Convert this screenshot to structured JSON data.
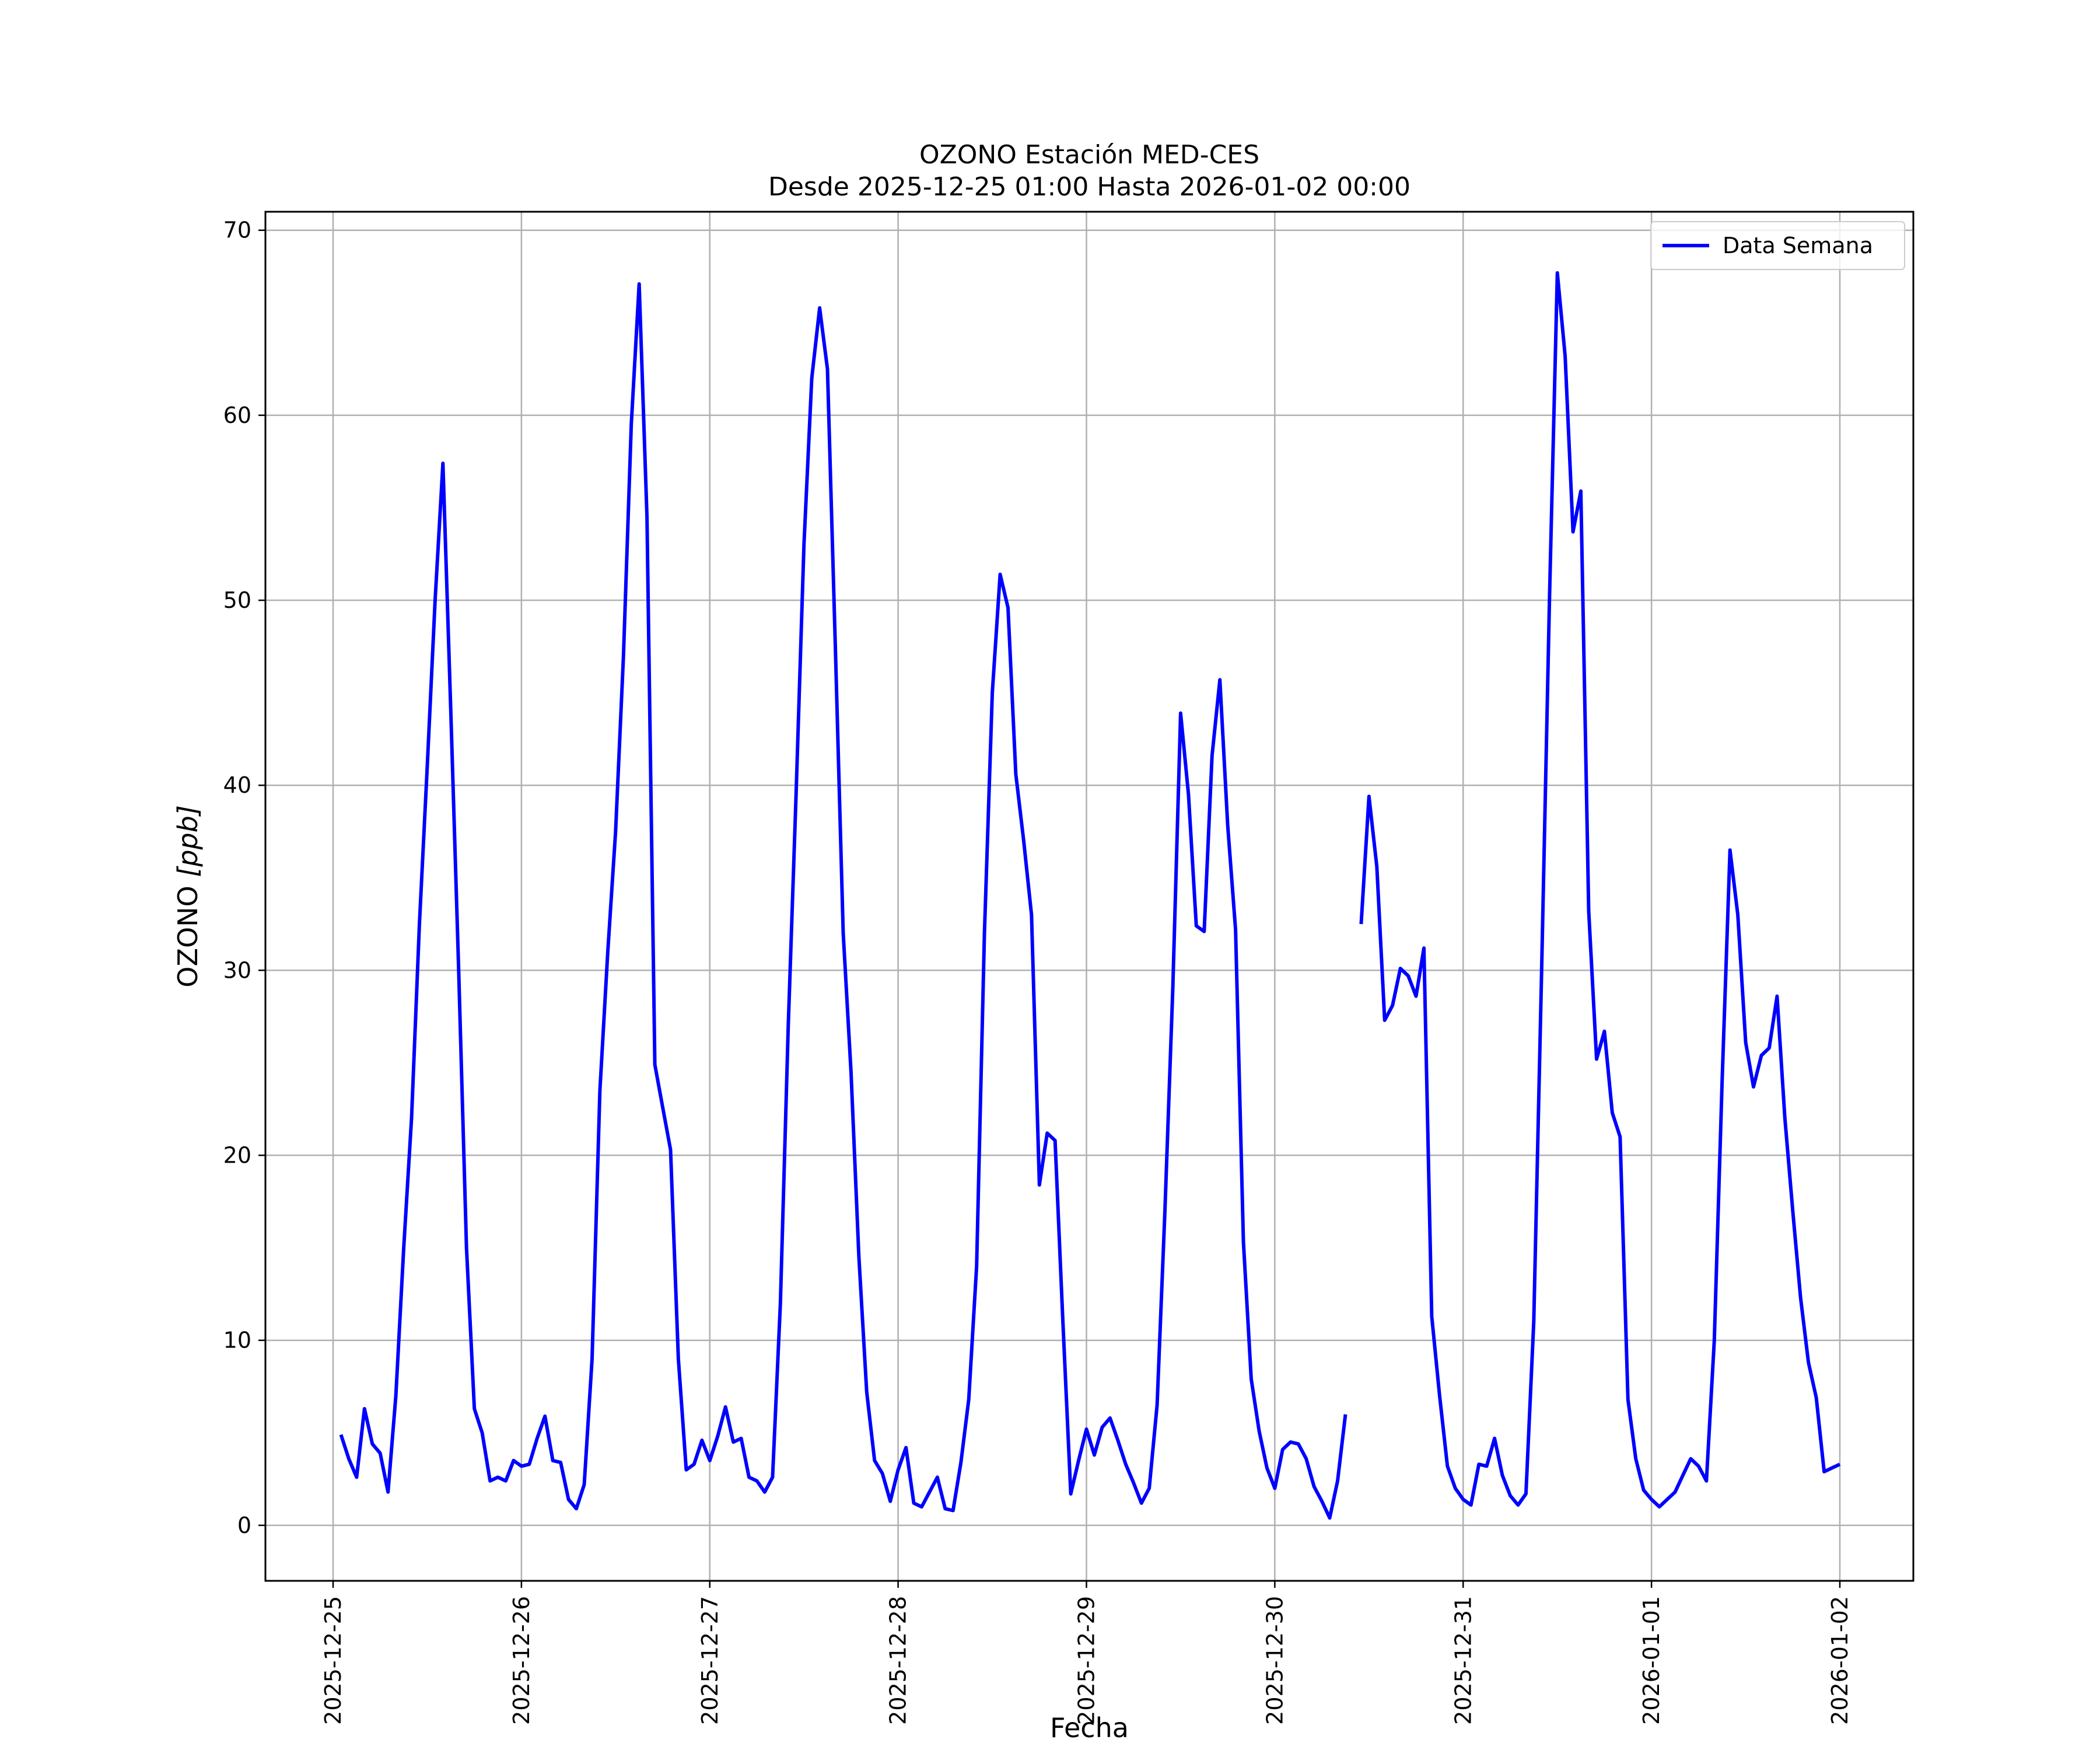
{
  "chart_data": {
    "type": "line",
    "title": "OZONO Estación MED-CES",
    "subtitle": "Desde 2025-12-25 01:00 Hasta 2026-01-02 00:00",
    "xlabel": "Fecha",
    "ylabel_main": "OZONO ",
    "ylabel_unit": "[ppb]",
    "x_start": "2025-12-25 01:00",
    "x_end": "2026-01-02 00:00",
    "x_interval_hours": 1,
    "xlim": [
      "2024-12-24 14:05",
      "2026-01-02 10:20"
    ],
    "ylim": [
      -3,
      71
    ],
    "yticks": [
      0,
      10,
      20,
      30,
      40,
      50,
      60,
      70
    ],
    "xticks": [
      "2025-12-25",
      "2025-12-26",
      "2025-12-27",
      "2025-12-28",
      "2025-12-29",
      "2025-12-30",
      "2025-12-31",
      "2026-01-01",
      "2026-01-02"
    ],
    "grid": true,
    "legend_position": "top-right",
    "series": [
      {
        "name": "Data Semana",
        "color": "#0000ff",
        "values": [
          4.9,
          3.6,
          2.6,
          6.3,
          4.4,
          3.9,
          1.8,
          7.0,
          15.0,
          22.0,
          32.5,
          41.0,
          50.0,
          57.4,
          44.0,
          30.0,
          15.0,
          6.3,
          5.0,
          2.4,
          2.6,
          2.4,
          3.5,
          3.2,
          3.3,
          4.7,
          5.9,
          3.5,
          3.4,
          1.4,
          0.9,
          2.2,
          9.0,
          23.5,
          31.0,
          37.5,
          47.0,
          59.5,
          67.1,
          54.5,
          24.9,
          22.6,
          20.3,
          9.0,
          3.0,
          3.3,
          4.6,
          3.5,
          4.8,
          6.4,
          4.5,
          4.7,
          2.6,
          2.4,
          1.8,
          2.6,
          12.0,
          27.0,
          39.5,
          53.0,
          62.0,
          65.8,
          62.5,
          47.5,
          32.0,
          24.5,
          14.5,
          7.2,
          3.5,
          2.8,
          1.3,
          3.0,
          4.2,
          1.2,
          1.0,
          1.8,
          2.6,
          0.9,
          0.8,
          3.4,
          6.8,
          14.0,
          32.0,
          45.0,
          51.4,
          49.6,
          40.6,
          37.0,
          33.0,
          18.4,
          21.2,
          20.8,
          11.0,
          1.7,
          3.5,
          5.2,
          3.8,
          5.3,
          5.8,
          4.6,
          3.3,
          2.3,
          1.2,
          2.0,
          6.5,
          17.0,
          29.0,
          43.9,
          39.5,
          32.4,
          32.1,
          41.6,
          45.7,
          37.8,
          32.2,
          15.3,
          7.9,
          5.1,
          3.1,
          2.0,
          4.1,
          4.5,
          4.4,
          3.6,
          2.1,
          1.3,
          0.4,
          2.4,
          6.0,
          null,
          32.5,
          39.4,
          35.6,
          27.3,
          28.1,
          30.1,
          29.7,
          28.6,
          31.2,
          11.3,
          7.0,
          3.2,
          2.0,
          1.4,
          1.1,
          3.3,
          3.2,
          4.7,
          2.7,
          1.6,
          1.1,
          1.7,
          11.0,
          30.0,
          50.0,
          67.7,
          63.2,
          53.7,
          55.9,
          33.2,
          25.2,
          26.7,
          22.3,
          21.0,
          6.8,
          3.6,
          1.9,
          1.4,
          1.0,
          1.4,
          1.8,
          2.7,
          3.6,
          3.2,
          2.4,
          10.0,
          24.0,
          36.5,
          33.0,
          26.1,
          23.7,
          25.4,
          25.8,
          28.6,
          22.0,
          17.0,
          12.3,
          8.8,
          6.9,
          2.9,
          3.1,
          3.3
        ]
      }
    ]
  }
}
